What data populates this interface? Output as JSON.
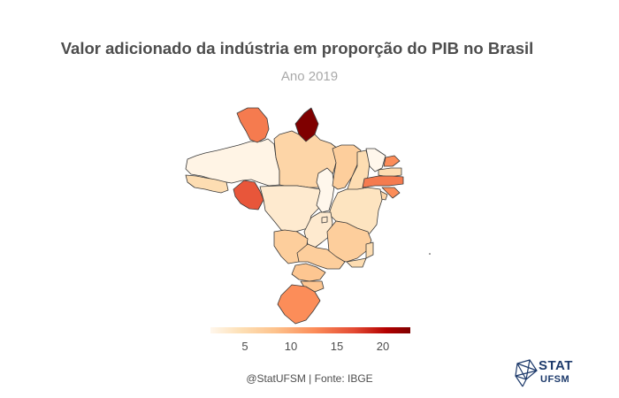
{
  "title": "Valor adicionado da indústria em proporção do PIB no Brasil",
  "subtitle": "Ano 2019",
  "legend": {
    "ticks": [
      "5",
      "10",
      "15",
      "20"
    ],
    "min": 1,
    "max": 23,
    "colors": [
      "#fff7ec",
      "#fde0b6",
      "#fdc38d",
      "#fc8d59",
      "#e34a33",
      "#b30000",
      "#7f0000"
    ]
  },
  "caption": "@StatUFSM  |  Fonte: IBGE",
  "logo": {
    "line1": "STAT",
    "line2": "UFSM"
  },
  "states": [
    {
      "id": "AM",
      "value": 1.5
    },
    {
      "id": "RR",
      "value": 13
    },
    {
      "id": "AP",
      "value": 23
    },
    {
      "id": "PA",
      "value": 6
    },
    {
      "id": "AC",
      "value": 5
    },
    {
      "id": "RO",
      "value": 15
    },
    {
      "id": "MT",
      "value": 3
    },
    {
      "id": "TO",
      "value": 1
    },
    {
      "id": "MA",
      "value": 7
    },
    {
      "id": "PI",
      "value": 5
    },
    {
      "id": "CE",
      "value": 1
    },
    {
      "id": "RN",
      "value": 12
    },
    {
      "id": "PB",
      "value": 5
    },
    {
      "id": "PE",
      "value": 13
    },
    {
      "id": "AL",
      "value": 12
    },
    {
      "id": "SE",
      "value": 6
    },
    {
      "id": "BA",
      "value": 4
    },
    {
      "id": "GO",
      "value": 3
    },
    {
      "id": "DF",
      "value": 3
    },
    {
      "id": "MG",
      "value": 7
    },
    {
      "id": "ES",
      "value": 5
    },
    {
      "id": "RJ",
      "value": 5
    },
    {
      "id": "MS",
      "value": 7
    },
    {
      "id": "SP",
      "value": 7
    },
    {
      "id": "PR",
      "value": 8
    },
    {
      "id": "SC",
      "value": 8
    },
    {
      "id": "RS",
      "value": 12
    }
  ]
}
